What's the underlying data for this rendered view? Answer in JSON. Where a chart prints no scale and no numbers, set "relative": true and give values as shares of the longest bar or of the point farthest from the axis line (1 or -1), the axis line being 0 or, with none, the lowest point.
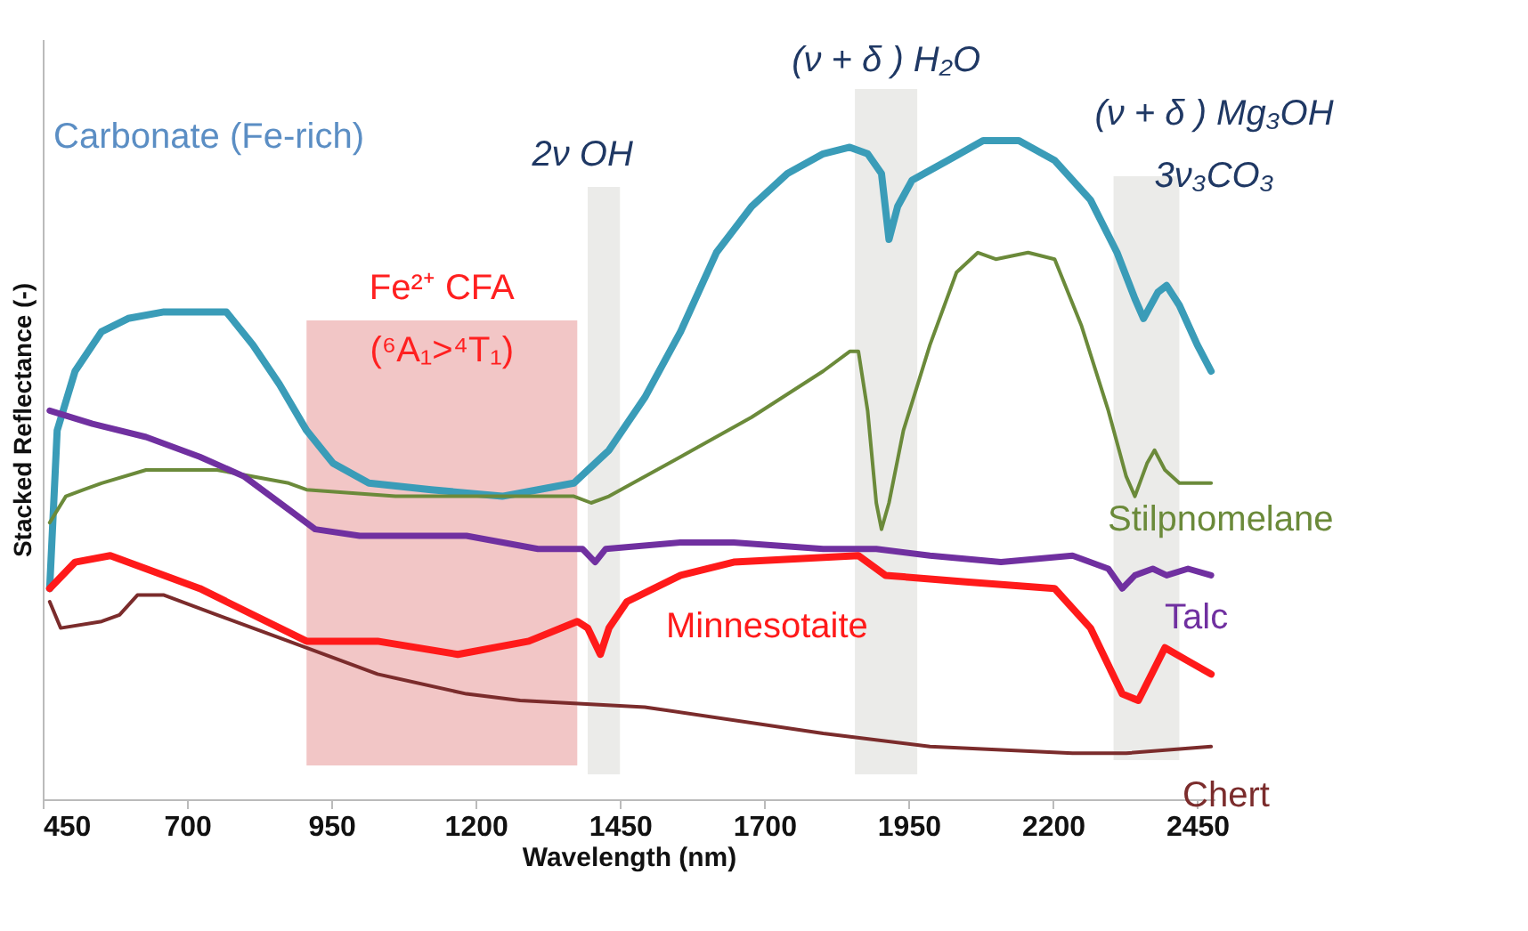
{
  "chart_data": {
    "type": "line",
    "relative": true,
    "xlabel": "Wavelength (nm)",
    "ylabel": "Stacked Reflectance (-)",
    "xlim": [
      450,
      2480
    ],
    "xticks": [
      450,
      700,
      950,
      1200,
      1450,
      1700,
      1950,
      2200,
      2450
    ],
    "grid": false,
    "bands": [
      {
        "axis": "x",
        "from": 907,
        "to": 1376,
        "label": "Fe²⁺ CFA\n(⁶A₁>⁴T₁)",
        "color": "#f2c6c6"
      },
      {
        "axis": "x",
        "from": 1394,
        "to": 1450,
        "label": "2ν OH",
        "color": "#ebebe9"
      },
      {
        "axis": "x",
        "from": 1857,
        "to": 1965,
        "label": "(ν + δ ) H₂O",
        "color": "#ebebe9"
      },
      {
        "axis": "x",
        "from": 2305,
        "to": 2419,
        "label": "(ν + δ ) Mg₃OH\n3ν₃CO₃",
        "color": "#ebebe9"
      }
    ],
    "series": [
      {
        "name": "Carbonate (Fe-rich)",
        "color": "#3a9cb8",
        "x": [
          462,
          475,
          506,
          552,
          598,
          660,
          722,
          768,
          814,
          860,
          907,
          953,
          1015,
          1123,
          1246,
          1308,
          1370,
          1431,
          1493,
          1555,
          1617,
          1678,
          1740,
          1802,
          1848,
          1879,
          1903,
          1916,
          1931,
          1956,
          2018,
          2079,
          2141,
          2203,
          2265,
          2311,
          2342,
          2357,
          2382,
          2397,
          2419,
          2450,
          2474
        ],
        "values": [
          0.32,
          0.56,
          0.65,
          0.71,
          0.73,
          0.74,
          0.74,
          0.74,
          0.69,
          0.63,
          0.56,
          0.51,
          0.48,
          0.47,
          0.46,
          0.47,
          0.48,
          0.53,
          0.61,
          0.71,
          0.83,
          0.9,
          0.95,
          0.98,
          0.99,
          0.98,
          0.95,
          0.85,
          0.9,
          0.94,
          0.97,
          1.0,
          1.0,
          0.97,
          0.91,
          0.83,
          0.76,
          0.73,
          0.77,
          0.78,
          0.75,
          0.69,
          0.65
        ]
      },
      {
        "name": "Stilpnomelane",
        "color": "#6b8a3a",
        "x": [
          462,
          490,
          521,
          552,
          629,
          752,
          876,
          907,
          1061,
          1246,
          1370,
          1400,
          1431,
          1555,
          1678,
          1802,
          1848,
          1863,
          1879,
          1894,
          1903,
          1916,
          1941,
          1987,
          2033,
          2070,
          2101,
          2157,
          2203,
          2249,
          2296,
          2327,
          2342,
          2363,
          2376,
          2394,
          2419,
          2450,
          2474
        ],
        "values": [
          0.42,
          0.46,
          0.47,
          0.48,
          0.5,
          0.5,
          0.48,
          0.47,
          0.46,
          0.46,
          0.46,
          0.45,
          0.46,
          0.52,
          0.58,
          0.65,
          0.68,
          0.68,
          0.59,
          0.45,
          0.41,
          0.45,
          0.56,
          0.69,
          0.8,
          0.83,
          0.82,
          0.83,
          0.82,
          0.72,
          0.59,
          0.49,
          0.46,
          0.51,
          0.53,
          0.5,
          0.48,
          0.48,
          0.48
        ]
      },
      {
        "name": "Talc",
        "color": "#7030a0",
        "x": [
          462,
          536,
          629,
          722,
          799,
          876,
          922,
          999,
          1061,
          1184,
          1308,
          1385,
          1407,
          1425,
          1555,
          1647,
          1802,
          1894,
          1987,
          2110,
          2234,
          2296,
          2320,
          2342,
          2373,
          2397,
          2434,
          2474
        ],
        "values": [
          0.59,
          0.57,
          0.55,
          0.52,
          0.49,
          0.44,
          0.41,
          0.4,
          0.4,
          0.4,
          0.38,
          0.38,
          0.36,
          0.38,
          0.39,
          0.39,
          0.38,
          0.38,
          0.37,
          0.36,
          0.37,
          0.35,
          0.32,
          0.34,
          0.35,
          0.34,
          0.35,
          0.34
        ]
      },
      {
        "name": "Minnesotaite",
        "color": "#ff1a1a",
        "x": [
          462,
          506,
          567,
          722,
          907,
          1030,
          1169,
          1292,
          1376,
          1394,
          1416,
          1431,
          1462,
          1555,
          1647,
          1863,
          1910,
          2049,
          2203,
          2265,
          2320,
          2348,
          2394,
          2434,
          2474
        ],
        "values": [
          0.32,
          0.36,
          0.37,
          0.32,
          0.24,
          0.24,
          0.22,
          0.24,
          0.27,
          0.26,
          0.22,
          0.26,
          0.3,
          0.34,
          0.36,
          0.37,
          0.34,
          0.33,
          0.32,
          0.26,
          0.16,
          0.15,
          0.23,
          0.21,
          0.19
        ]
      },
      {
        "name": "Chert",
        "color": "#7b2c2c",
        "x": [
          462,
          481,
          552,
          583,
          614,
          660,
          752,
          876,
          1030,
          1184,
          1277,
          1493,
          1802,
          1987,
          2234,
          2327,
          2474
        ],
        "values": [
          0.3,
          0.26,
          0.27,
          0.28,
          0.31,
          0.31,
          0.28,
          0.24,
          0.19,
          0.16,
          0.15,
          0.14,
          0.1,
          0.08,
          0.07,
          0.07,
          0.08
        ]
      }
    ]
  }
}
